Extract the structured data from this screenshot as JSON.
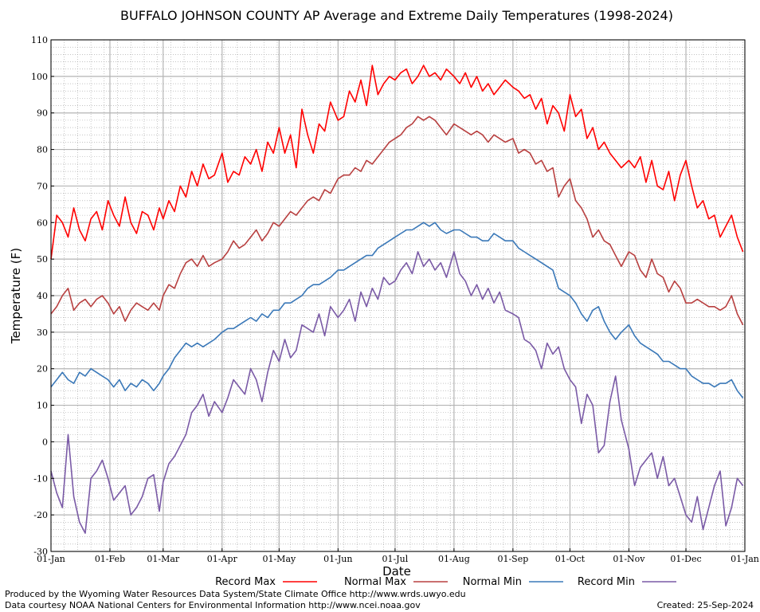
{
  "chart_data": {
    "type": "line",
    "title": "BUFFALO JOHNSON COUNTY AP Average and Extreme Daily Temperatures (1998-2024)",
    "xlabel": "Date",
    "ylabel": "Temperature (F)",
    "ylim": [
      -30,
      110
    ],
    "yticks": [
      "110",
      "100",
      "90",
      "80",
      "70",
      "60",
      "50",
      "40",
      "30",
      "20",
      "10",
      "0",
      "-10",
      "-20",
      "-30"
    ],
    "xlim": [
      0,
      365
    ],
    "xticks": [
      {
        "day": 0,
        "label": "01-Jan"
      },
      {
        "day": 31,
        "label": "01-Feb"
      },
      {
        "day": 59,
        "label": "01-Mar"
      },
      {
        "day": 90,
        "label": "01-Apr"
      },
      {
        "day": 120,
        "label": "01-May"
      },
      {
        "day": 151,
        "label": "01-Jun"
      },
      {
        "day": 181,
        "label": "01-Jul"
      },
      {
        "day": 212,
        "label": "01-Aug"
      },
      {
        "day": 243,
        "label": "01-Sep"
      },
      {
        "day": 273,
        "label": "01-Oct"
      },
      {
        "day": 304,
        "label": "01-Nov"
      },
      {
        "day": 334,
        "label": "01-Dec"
      },
      {
        "day": 365,
        "label": "01-Jan"
      }
    ],
    "grid": true,
    "legend_position": "bottom",
    "series": [
      {
        "name": "Record Max",
        "color": "#ff0000",
        "x": [
          0,
          3,
          6,
          9,
          12,
          15,
          18,
          21,
          24,
          27,
          30,
          33,
          36,
          39,
          42,
          45,
          48,
          51,
          54,
          57,
          59,
          62,
          65,
          68,
          71,
          74,
          77,
          80,
          83,
          86,
          90,
          93,
          96,
          99,
          102,
          105,
          108,
          111,
          114,
          117,
          120,
          123,
          126,
          129,
          132,
          135,
          138,
          141,
          144,
          147,
          151,
          154,
          157,
          160,
          163,
          166,
          169,
          172,
          175,
          178,
          181,
          184,
          187,
          190,
          193,
          196,
          199,
          202,
          205,
          208,
          212,
          215,
          218,
          221,
          224,
          227,
          230,
          233,
          236,
          239,
          243,
          246,
          249,
          252,
          255,
          258,
          261,
          264,
          267,
          270,
          273,
          276,
          279,
          282,
          285,
          288,
          291,
          294,
          297,
          300,
          304,
          307,
          310,
          313,
          316,
          319,
          322,
          325,
          328,
          331,
          334,
          337,
          340,
          343,
          346,
          349,
          352,
          355,
          358,
          361,
          364
        ],
        "values": [
          50,
          62,
          60,
          56,
          64,
          58,
          55,
          61,
          63,
          58,
          66,
          62,
          59,
          67,
          60,
          57,
          63,
          62,
          58,
          64,
          61,
          66,
          63,
          70,
          67,
          74,
          70,
          76,
          72,
          73,
          79,
          71,
          74,
          73,
          78,
          76,
          80,
          74,
          82,
          79,
          86,
          79,
          84,
          75,
          91,
          84,
          79,
          87,
          85,
          93,
          88,
          89,
          96,
          93,
          99,
          92,
          103,
          95,
          98,
          100,
          99,
          101,
          102,
          98,
          100,
          103,
          100,
          101,
          99,
          102,
          100,
          98,
          101,
          97,
          100,
          96,
          98,
          95,
          97,
          99,
          97,
          96,
          94,
          95,
          91,
          94,
          87,
          92,
          90,
          85,
          95,
          89,
          91,
          83,
          86,
          80,
          82,
          79,
          77,
          75,
          77,
          75,
          78,
          71,
          77,
          70,
          69,
          74,
          66,
          73,
          77,
          70,
          64,
          66,
          61,
          62,
          56,
          59,
          62,
          56,
          52
        ]
      },
      {
        "name": "Normal Max",
        "color": "#b84040",
        "x": [
          0,
          3,
          6,
          9,
          12,
          15,
          18,
          21,
          24,
          27,
          30,
          33,
          36,
          39,
          42,
          45,
          48,
          51,
          54,
          57,
          59,
          62,
          65,
          68,
          71,
          74,
          77,
          80,
          83,
          86,
          90,
          93,
          96,
          99,
          102,
          105,
          108,
          111,
          114,
          117,
          120,
          123,
          126,
          129,
          132,
          135,
          138,
          141,
          144,
          147,
          151,
          154,
          157,
          160,
          163,
          166,
          169,
          172,
          175,
          178,
          181,
          184,
          187,
          190,
          193,
          196,
          199,
          202,
          205,
          208,
          212,
          215,
          218,
          221,
          224,
          227,
          230,
          233,
          236,
          239,
          243,
          246,
          249,
          252,
          255,
          258,
          261,
          264,
          267,
          270,
          273,
          276,
          279,
          282,
          285,
          288,
          291,
          294,
          297,
          300,
          304,
          307,
          310,
          313,
          316,
          319,
          322,
          325,
          328,
          331,
          334,
          337,
          340,
          343,
          346,
          349,
          352,
          355,
          358,
          361,
          364
        ],
        "values": [
          35,
          37,
          40,
          42,
          36,
          38,
          39,
          37,
          39,
          40,
          38,
          35,
          37,
          33,
          36,
          38,
          37,
          36,
          38,
          36,
          40,
          43,
          42,
          46,
          49,
          50,
          48,
          51,
          48,
          49,
          50,
          52,
          55,
          53,
          54,
          56,
          58,
          55,
          57,
          60,
          59,
          61,
          63,
          62,
          64,
          66,
          67,
          66,
          69,
          68,
          72,
          73,
          73,
          75,
          74,
          77,
          76,
          78,
          80,
          82,
          83,
          84,
          86,
          87,
          89,
          88,
          89,
          88,
          86,
          84,
          87,
          86,
          85,
          84,
          85,
          84,
          82,
          84,
          83,
          82,
          83,
          79,
          80,
          79,
          76,
          77,
          74,
          75,
          67,
          70,
          72,
          66,
          64,
          61,
          56,
          58,
          55,
          54,
          51,
          48,
          52,
          51,
          47,
          45,
          50,
          46,
          45,
          41,
          44,
          42,
          38,
          38,
          39,
          38,
          37,
          37,
          36,
          37,
          40,
          35,
          32
        ]
      },
      {
        "name": "Normal Min",
        "color": "#3a78b8",
        "x": [
          0,
          3,
          6,
          9,
          12,
          15,
          18,
          21,
          24,
          27,
          30,
          33,
          36,
          39,
          42,
          45,
          48,
          51,
          54,
          57,
          59,
          62,
          65,
          68,
          71,
          74,
          77,
          80,
          83,
          86,
          90,
          93,
          96,
          99,
          102,
          105,
          108,
          111,
          114,
          117,
          120,
          123,
          126,
          129,
          132,
          135,
          138,
          141,
          144,
          147,
          151,
          154,
          157,
          160,
          163,
          166,
          169,
          172,
          175,
          178,
          181,
          184,
          187,
          190,
          193,
          196,
          199,
          202,
          205,
          208,
          212,
          215,
          218,
          221,
          224,
          227,
          230,
          233,
          236,
          239,
          243,
          246,
          249,
          252,
          255,
          258,
          261,
          264,
          267,
          270,
          273,
          276,
          279,
          282,
          285,
          288,
          291,
          294,
          297,
          300,
          304,
          307,
          310,
          313,
          316,
          319,
          322,
          325,
          328,
          331,
          334,
          337,
          340,
          343,
          346,
          349,
          352,
          355,
          358,
          361,
          364
        ],
        "values": [
          15,
          17,
          19,
          17,
          16,
          19,
          18,
          20,
          19,
          18,
          17,
          15,
          17,
          14,
          16,
          15,
          17,
          16,
          14,
          16,
          18,
          20,
          23,
          25,
          27,
          26,
          27,
          26,
          27,
          28,
          30,
          31,
          31,
          32,
          33,
          34,
          33,
          35,
          34,
          36,
          36,
          38,
          38,
          39,
          40,
          42,
          43,
          43,
          44,
          45,
          47,
          47,
          48,
          49,
          50,
          51,
          51,
          53,
          54,
          55,
          56,
          57,
          58,
          58,
          59,
          60,
          59,
          60,
          58,
          57,
          58,
          58,
          57,
          56,
          56,
          55,
          55,
          57,
          56,
          55,
          55,
          53,
          52,
          51,
          50,
          49,
          48,
          47,
          42,
          41,
          40,
          38,
          35,
          33,
          36,
          37,
          33,
          30,
          28,
          30,
          32,
          29,
          27,
          26,
          25,
          24,
          22,
          22,
          21,
          20,
          20,
          18,
          17,
          16,
          16,
          15,
          16,
          16,
          17,
          14,
          12
        ]
      },
      {
        "name": "Record Min",
        "color": "#7a5aa6",
        "x": [
          0,
          3,
          6,
          9,
          12,
          15,
          18,
          21,
          24,
          27,
          30,
          33,
          36,
          39,
          42,
          45,
          48,
          51,
          54,
          57,
          59,
          62,
          65,
          68,
          71,
          74,
          77,
          80,
          83,
          86,
          90,
          93,
          96,
          99,
          102,
          105,
          108,
          111,
          114,
          117,
          120,
          123,
          126,
          129,
          132,
          135,
          138,
          141,
          144,
          147,
          151,
          154,
          157,
          160,
          163,
          166,
          169,
          172,
          175,
          178,
          181,
          184,
          187,
          190,
          193,
          196,
          199,
          202,
          205,
          208,
          212,
          215,
          218,
          221,
          224,
          227,
          230,
          233,
          236,
          239,
          243,
          246,
          249,
          252,
          255,
          258,
          261,
          264,
          267,
          270,
          273,
          276,
          279,
          282,
          285,
          288,
          291,
          294,
          297,
          300,
          304,
          307,
          310,
          313,
          316,
          319,
          322,
          325,
          328,
          331,
          334,
          337,
          340,
          343,
          346,
          349,
          352,
          355,
          358,
          361,
          364
        ],
        "values": [
          -8,
          -14,
          -18,
          2,
          -15,
          -22,
          -25,
          -10,
          -8,
          -5,
          -10,
          -16,
          -14,
          -12,
          -20,
          -18,
          -15,
          -10,
          -9,
          -19,
          -11,
          -6,
          -4,
          -1,
          2,
          8,
          10,
          13,
          7,
          11,
          8,
          12,
          17,
          15,
          13,
          20,
          17,
          11,
          19,
          25,
          22,
          28,
          23,
          25,
          32,
          31,
          30,
          35,
          29,
          37,
          34,
          36,
          39,
          33,
          41,
          37,
          42,
          39,
          45,
          43,
          44,
          47,
          49,
          46,
          52,
          48,
          50,
          47,
          49,
          45,
          52,
          46,
          44,
          40,
          43,
          39,
          42,
          38,
          41,
          36,
          35,
          34,
          28,
          27,
          25,
          20,
          27,
          24,
          26,
          20,
          17,
          15,
          5,
          13,
          10,
          -3,
          -1,
          11,
          18,
          6,
          -2,
          -12,
          -7,
          -5,
          -3,
          -10,
          -4,
          -12,
          -10,
          -15,
          -20,
          -22,
          -15,
          -24,
          -18,
          -12,
          -8,
          -23,
          -18,
          -10,
          -12
        ]
      }
    ]
  },
  "footer": {
    "line1": "Produced by the Wyoming Water Resources Data System/State Climate Office http://www.wrds.uwyo.edu",
    "line2": "Data courtesy NOAA National Centers for Environmental Information http://www.ncei.noaa.gov",
    "created": "Created:  25-Sep-2024"
  }
}
